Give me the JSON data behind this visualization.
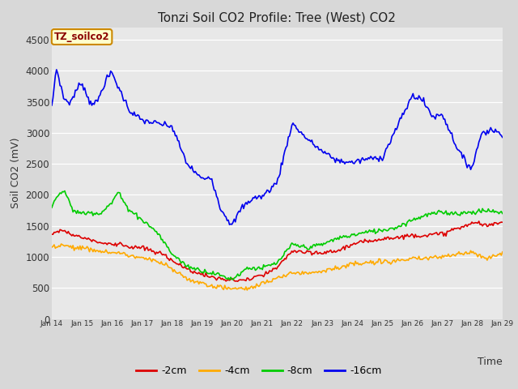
{
  "title": "Tonzi Soil CO2 Profile: Tree (West) CO2",
  "xlabel": "Time",
  "ylabel": "Soil CO2 (mV)",
  "ylim": [
    0,
    4700
  ],
  "yticks": [
    0,
    500,
    1000,
    1500,
    2000,
    2500,
    3000,
    3500,
    4000,
    4500
  ],
  "background_color": "#d8d8d8",
  "plot_bg_color": "#e8e8e8",
  "legend_label": "TZ_soilco2",
  "series_labels": [
    "-2cm",
    "-4cm",
    "-8cm",
    "-16cm"
  ],
  "series_colors": [
    "#dd0000",
    "#ffaa00",
    "#00cc00",
    "#0000ee"
  ],
  "line_width": 1.2,
  "xmin": 14,
  "xmax": 29,
  "xtick_positions": [
    14,
    15,
    16,
    17,
    18,
    19,
    20,
    21,
    22,
    23,
    24,
    25,
    26,
    27,
    28,
    29
  ],
  "xtick_labels": [
    "Jan 14",
    "Jan 15",
    "Jan 16",
    "Jan 17",
    "Jan 18",
    "Jan 19",
    "Jan 20",
    "Jan 21",
    "Jan 22",
    "Jan 23",
    "Jan 24",
    "Jan 25",
    "Jan 26",
    "Jan 27",
    "Jan 28",
    "Jan 29"
  ]
}
